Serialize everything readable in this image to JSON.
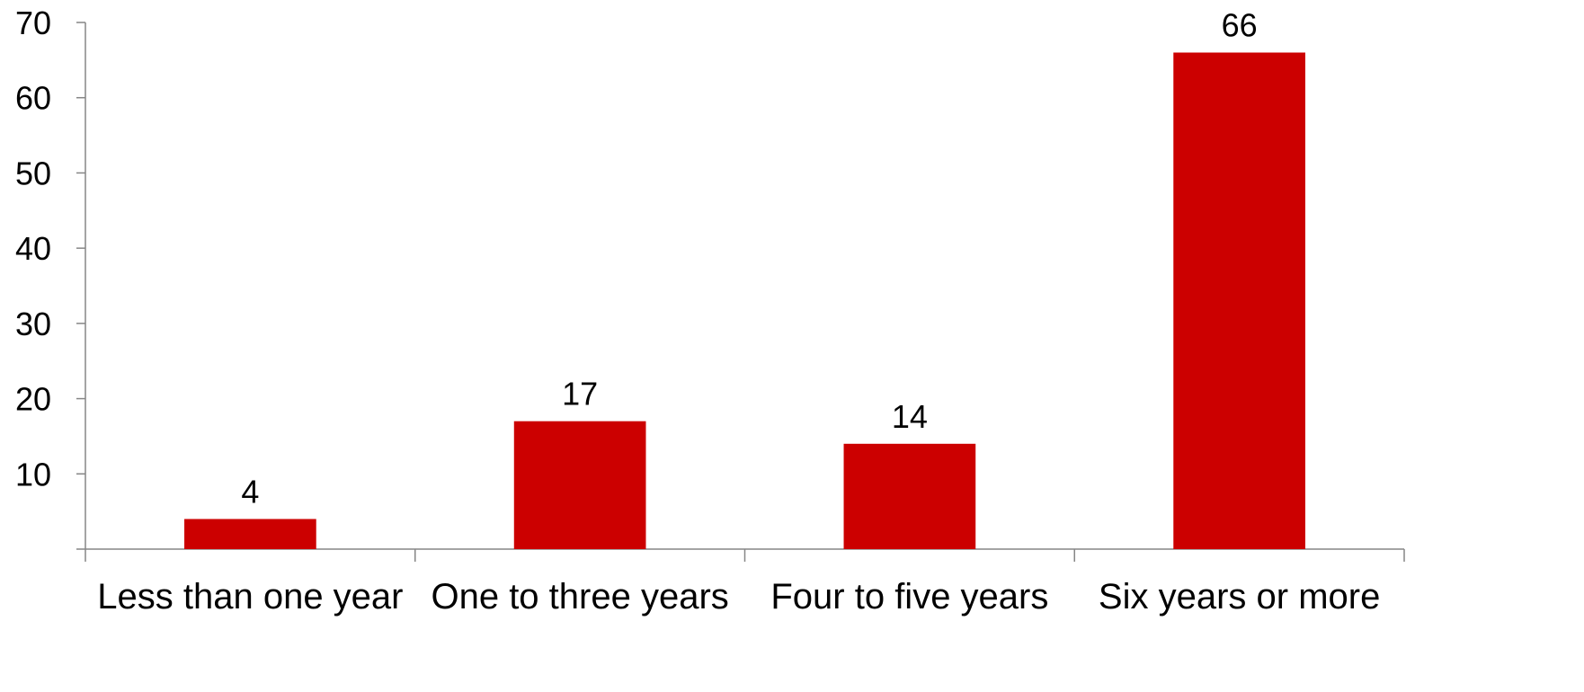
{
  "chart_data": {
    "type": "bar",
    "categories": [
      "Less than one year",
      "One to three years",
      "Four to five years",
      "Six years or more"
    ],
    "values": [
      4,
      17,
      14,
      66
    ],
    "data_labels": [
      "4",
      "17",
      "14",
      "66"
    ],
    "title": "",
    "xlabel": "",
    "ylabel": "",
    "ylim": [
      0,
      70
    ],
    "yticks": [
      10,
      20,
      30,
      40,
      50,
      60,
      70
    ],
    "ytick_labels": [
      "10",
      "20",
      "30",
      "40",
      "50",
      "60",
      "70"
    ],
    "grid": false,
    "legend": "none",
    "bar_color": "#CC0000",
    "axis_color": "#868686"
  }
}
